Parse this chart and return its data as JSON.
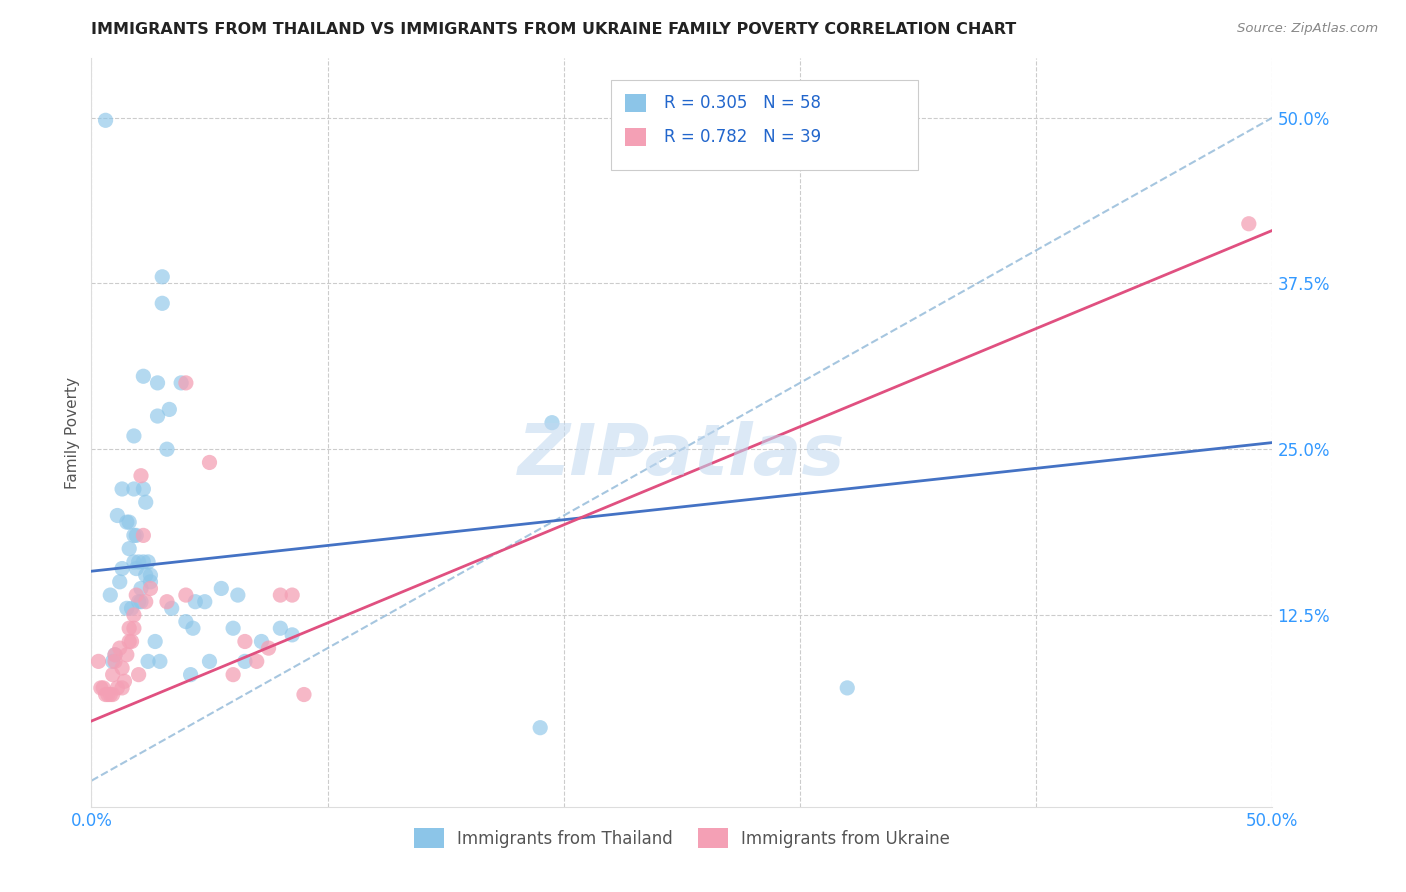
{
  "title": "IMMIGRANTS FROM THAILAND VS IMMIGRANTS FROM UKRAINE FAMILY POVERTY CORRELATION CHART",
  "source": "Source: ZipAtlas.com",
  "ylabel": "Family Poverty",
  "xlim": [
    0.0,
    0.5
  ],
  "ylim": [
    -0.02,
    0.545
  ],
  "ytick_values": [
    0.125,
    0.25,
    0.375,
    0.5
  ],
  "ytick_labels": [
    "12.5%",
    "25.0%",
    "37.5%",
    "50.0%"
  ],
  "thailand_color": "#8cc5e8",
  "ukraine_color": "#f4a0b5",
  "thailand_line_color": "#4472c4",
  "ukraine_line_color": "#e05080",
  "diagonal_color": "#90b8d8",
  "thailand_R": 0.305,
  "thailand_N": 58,
  "ukraine_R": 0.782,
  "ukraine_N": 39,
  "thailand_scatter": [
    [
      0.006,
      0.498
    ],
    [
      0.008,
      0.14
    ],
    [
      0.009,
      0.09
    ],
    [
      0.01,
      0.095
    ],
    [
      0.011,
      0.2
    ],
    [
      0.012,
      0.15
    ],
    [
      0.013,
      0.16
    ],
    [
      0.013,
      0.22
    ],
    [
      0.015,
      0.13
    ],
    [
      0.015,
      0.195
    ],
    [
      0.016,
      0.175
    ],
    [
      0.016,
      0.195
    ],
    [
      0.017,
      0.13
    ],
    [
      0.018,
      0.185
    ],
    [
      0.018,
      0.165
    ],
    [
      0.018,
      0.22
    ],
    [
      0.018,
      0.26
    ],
    [
      0.019,
      0.16
    ],
    [
      0.019,
      0.185
    ],
    [
      0.02,
      0.135
    ],
    [
      0.02,
      0.165
    ],
    [
      0.021,
      0.135
    ],
    [
      0.021,
      0.145
    ],
    [
      0.022,
      0.165
    ],
    [
      0.022,
      0.22
    ],
    [
      0.022,
      0.305
    ],
    [
      0.023,
      0.155
    ],
    [
      0.023,
      0.21
    ],
    [
      0.024,
      0.09
    ],
    [
      0.024,
      0.165
    ],
    [
      0.025,
      0.15
    ],
    [
      0.025,
      0.155
    ],
    [
      0.027,
      0.105
    ],
    [
      0.028,
      0.275
    ],
    [
      0.028,
      0.3
    ],
    [
      0.029,
      0.09
    ],
    [
      0.03,
      0.36
    ],
    [
      0.03,
      0.38
    ],
    [
      0.032,
      0.25
    ],
    [
      0.033,
      0.28
    ],
    [
      0.034,
      0.13
    ],
    [
      0.038,
      0.3
    ],
    [
      0.04,
      0.12
    ],
    [
      0.042,
      0.08
    ],
    [
      0.043,
      0.115
    ],
    [
      0.044,
      0.135
    ],
    [
      0.048,
      0.135
    ],
    [
      0.05,
      0.09
    ],
    [
      0.055,
      0.145
    ],
    [
      0.06,
      0.115
    ],
    [
      0.062,
      0.14
    ],
    [
      0.065,
      0.09
    ],
    [
      0.072,
      0.105
    ],
    [
      0.08,
      0.115
    ],
    [
      0.085,
      0.11
    ],
    [
      0.19,
      0.04
    ],
    [
      0.195,
      0.27
    ],
    [
      0.32,
      0.07
    ]
  ],
  "ukraine_scatter": [
    [
      0.003,
      0.09
    ],
    [
      0.004,
      0.07
    ],
    [
      0.005,
      0.07
    ],
    [
      0.006,
      0.065
    ],
    [
      0.007,
      0.065
    ],
    [
      0.008,
      0.065
    ],
    [
      0.009,
      0.065
    ],
    [
      0.009,
      0.08
    ],
    [
      0.01,
      0.09
    ],
    [
      0.01,
      0.095
    ],
    [
      0.011,
      0.07
    ],
    [
      0.012,
      0.1
    ],
    [
      0.013,
      0.07
    ],
    [
      0.013,
      0.085
    ],
    [
      0.014,
      0.075
    ],
    [
      0.015,
      0.095
    ],
    [
      0.016,
      0.105
    ],
    [
      0.016,
      0.115
    ],
    [
      0.017,
      0.105
    ],
    [
      0.018,
      0.115
    ],
    [
      0.018,
      0.125
    ],
    [
      0.019,
      0.14
    ],
    [
      0.02,
      0.08
    ],
    [
      0.021,
      0.23
    ],
    [
      0.022,
      0.185
    ],
    [
      0.023,
      0.135
    ],
    [
      0.025,
      0.145
    ],
    [
      0.032,
      0.135
    ],
    [
      0.04,
      0.14
    ],
    [
      0.04,
      0.3
    ],
    [
      0.05,
      0.24
    ],
    [
      0.06,
      0.08
    ],
    [
      0.065,
      0.105
    ],
    [
      0.07,
      0.09
    ],
    [
      0.075,
      0.1
    ],
    [
      0.08,
      0.14
    ],
    [
      0.085,
      0.14
    ],
    [
      0.09,
      0.065
    ],
    [
      0.49,
      0.42
    ]
  ],
  "thailand_line": [
    [
      0.0,
      0.158
    ],
    [
      0.5,
      0.255
    ]
  ],
  "ukraine_line": [
    [
      0.0,
      0.045
    ],
    [
      0.5,
      0.415
    ]
  ],
  "diagonal_line": [
    [
      0.0,
      0.0
    ],
    [
      0.5,
      0.5
    ]
  ],
  "watermark": "ZIPatlas",
  "background_color": "#ffffff",
  "grid_color": "#cccccc"
}
